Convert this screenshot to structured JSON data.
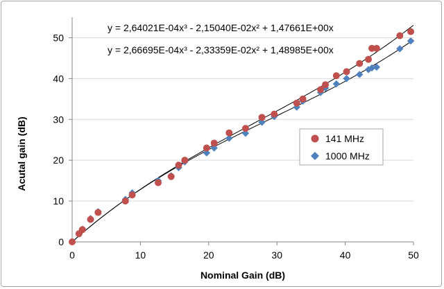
{
  "chart_data": {
    "type": "scatter",
    "xlabel": "Nominal Gain (dB)",
    "ylabel": "Acutal gain (dB)",
    "xlim": [
      0,
      50
    ],
    "ylim": [
      0,
      55
    ],
    "xticks": [
      "0",
      "10",
      "20",
      "30",
      "40",
      "50"
    ],
    "yticks": [
      "0",
      "10",
      "20",
      "30",
      "40",
      "50"
    ],
    "grid": "horizontal",
    "legend_position": "right",
    "annotations": [
      {
        "text": "y = 2,64021E-04x³ - 2,15040E-02x² + 1,47661E+00x"
      },
      {
        "text": "y = 2,66695E-04x³ - 2,33359E-02x² + 1,48985E+00x"
      }
    ],
    "series": [
      {
        "name": "141 MHz",
        "marker": "circle",
        "color": "#c0504d",
        "trend": [
          0.000264021,
          -0.021504,
          1.47661
        ],
        "points": [
          [
            0,
            0
          ],
          [
            1.0,
            2.0
          ],
          [
            1.5,
            3.0
          ],
          [
            2.7,
            5.5
          ],
          [
            3.8,
            7.2
          ],
          [
            7.8,
            10.0
          ],
          [
            8.8,
            11.5
          ],
          [
            12.6,
            14.5
          ],
          [
            14.5,
            16.0
          ],
          [
            15.6,
            18.8
          ],
          [
            16.5,
            20.0
          ],
          [
            19.7,
            23.0
          ],
          [
            20.8,
            24.2
          ],
          [
            23.0,
            26.7
          ],
          [
            25.4,
            27.8
          ],
          [
            27.8,
            30.5
          ],
          [
            29.6,
            31.3
          ],
          [
            32.9,
            34.0
          ],
          [
            33.8,
            35.0
          ],
          [
            36.4,
            37.3
          ],
          [
            37.1,
            38.5
          ],
          [
            38.7,
            40.7
          ],
          [
            40.2,
            41.7
          ],
          [
            42.1,
            43.7
          ],
          [
            43.4,
            44.7
          ],
          [
            43.9,
            47.4
          ],
          [
            44.6,
            47.4
          ],
          [
            48.0,
            50.5
          ],
          [
            49.6,
            51.5
          ]
        ]
      },
      {
        "name": "1000 MHz",
        "marker": "diamond",
        "color": "#4f81bd",
        "trend": [
          0.000266695,
          -0.0233359,
          1.48985
        ],
        "points": [
          [
            0,
            0
          ],
          [
            1.0,
            2.0
          ],
          [
            1.5,
            3.1
          ],
          [
            2.7,
            5.7
          ],
          [
            3.8,
            7.4
          ],
          [
            7.8,
            10.4
          ],
          [
            8.8,
            12.0
          ],
          [
            12.6,
            15.0
          ],
          [
            14.5,
            16.2
          ],
          [
            15.6,
            18.2
          ],
          [
            16.5,
            19.6
          ],
          [
            19.7,
            21.8
          ],
          [
            20.8,
            23.0
          ],
          [
            23.0,
            25.4
          ],
          [
            25.4,
            26.6
          ],
          [
            27.8,
            29.3
          ],
          [
            29.6,
            30.7
          ],
          [
            32.9,
            33.0
          ],
          [
            33.8,
            34.5
          ],
          [
            36.4,
            36.6
          ],
          [
            37.1,
            37.7
          ],
          [
            38.7,
            38.7
          ],
          [
            40.2,
            40.0
          ],
          [
            42.1,
            41.0
          ],
          [
            43.4,
            42.2
          ],
          [
            43.9,
            42.6
          ],
          [
            44.6,
            42.8
          ],
          [
            48.0,
            47.3
          ],
          [
            49.6,
            49.2
          ]
        ]
      }
    ]
  }
}
